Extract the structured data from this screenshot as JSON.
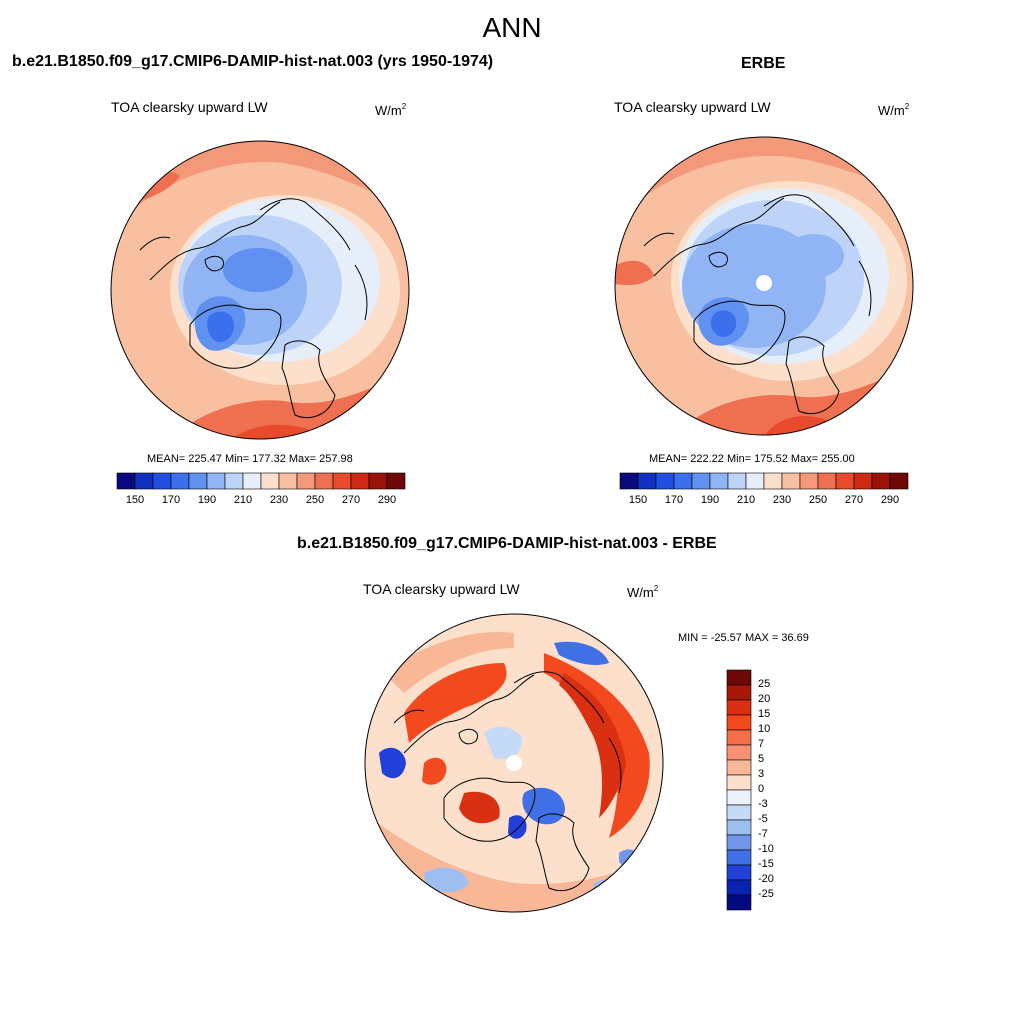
{
  "title": "ANN",
  "palette_abs": [
    "#0a0a80",
    "#1030c0",
    "#2050e0",
    "#3a70ec",
    "#6090f0",
    "#90b4f4",
    "#bdd4f8",
    "#e6eef9",
    "#fde0cc",
    "#f8c0a0",
    "#f4987a",
    "#ee7050",
    "#e84a2c",
    "#cc2a14",
    "#9a1208",
    "#6e0806"
  ],
  "palette_diff": [
    "#6e0806",
    "#a81806",
    "#d83010",
    "#f24a1e",
    "#f46e48",
    "#f89272",
    "#f8b898",
    "#fde0cc",
    "#eaf2fb",
    "#c4daf6",
    "#9cbef0",
    "#7096ea",
    "#4070e6",
    "#2040d8",
    "#0a22b0",
    "#040a80"
  ],
  "panels": [
    {
      "title": "b.e21.B1850.f09_g17.CMIP6-DAMIP-hist-nat.003 (yrs 1950-1974)",
      "variable": "TOA clearsky upward LW",
      "unit_base": "W/m",
      "unit_exp": "2",
      "stats": "MEAN= 225.47  Min= 177.32  Max= 257.98",
      "colorbar_ticks": [
        "150",
        "170",
        "190",
        "210",
        "230",
        "250",
        "270",
        "290"
      ]
    },
    {
      "title": "ERBE",
      "variable": "TOA clearsky upward LW",
      "unit_base": "W/m",
      "unit_exp": "2",
      "stats": "MEAN= 222.22  Min= 175.52  Max= 255.00",
      "colorbar_ticks": [
        "150",
        "170",
        "190",
        "210",
        "230",
        "250",
        "270",
        "290"
      ]
    },
    {
      "title": "b.e21.B1850.f09_g17.CMIP6-DAMIP-hist-nat.003 - ERBE",
      "variable": "TOA clearsky upward LW",
      "unit_base": "W/m",
      "unit_exp": "2",
      "stats": "MIN = -25.57 MAX =  36.69",
      "colorbar_ticks": [
        "25",
        "20",
        "15",
        "10",
        "7",
        "5",
        "3",
        "0",
        "-3",
        "-5",
        "-7",
        "-10",
        "-15",
        "-20",
        "-25"
      ]
    }
  ]
}
